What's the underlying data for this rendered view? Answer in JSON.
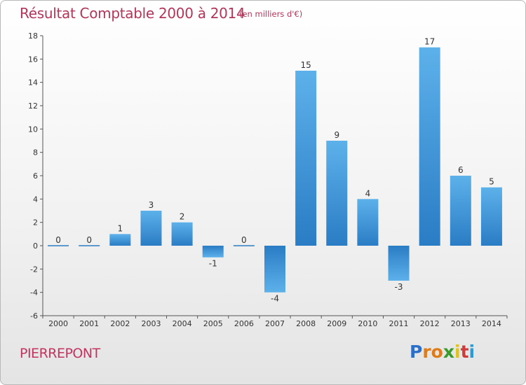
{
  "chart_data": {
    "type": "bar",
    "title": "Résultat Comptable 2000 à 2014",
    "subtitle": "(en milliers d'€)",
    "categories": [
      "2000",
      "2001",
      "2002",
      "2003",
      "2004",
      "2005",
      "2006",
      "2007",
      "2008",
      "2009",
      "2010",
      "2011",
      "2012",
      "2013",
      "2014"
    ],
    "values": [
      0,
      0,
      1,
      3,
      2,
      -1,
      0,
      -4,
      15,
      9,
      4,
      -3,
      17,
      6,
      5
    ],
    "ylim": [
      -6,
      18
    ],
    "yticks": [
      -6,
      -4,
      -2,
      0,
      2,
      4,
      6,
      8,
      10,
      12,
      14,
      16,
      18
    ],
    "grid": false,
    "bar_color": "#3a8fd6"
  },
  "footer": {
    "city": "PIERREPONT",
    "logo_letters": [
      "P",
      "r",
      "o",
      "x",
      "i",
      "t",
      "i"
    ],
    "logo_colors": [
      "#2b6fc9",
      "#e07b1a",
      "#e07b1a",
      "#3a9a2a",
      "#e0c21a",
      "#d03a3a",
      "#2b9ad6"
    ]
  }
}
